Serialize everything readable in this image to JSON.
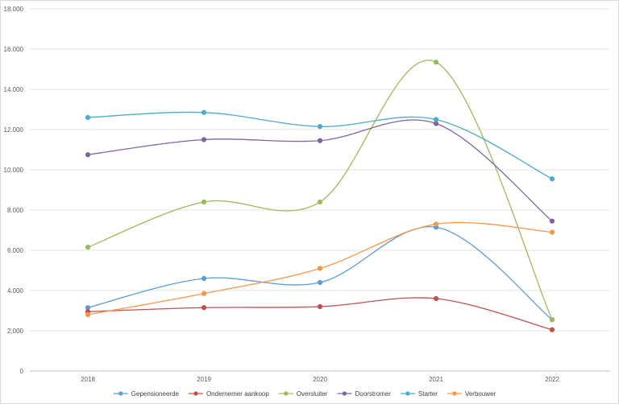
{
  "chart_data": {
    "type": "line",
    "title": "",
    "xlabel": "",
    "ylabel": "",
    "categories": [
      "2018",
      "2019",
      "2020",
      "2021",
      "2022"
    ],
    "ylim": [
      0,
      18000
    ],
    "yticks": [
      0,
      2000,
      4000,
      6000,
      8000,
      10000,
      12000,
      14000,
      16000,
      18000
    ],
    "ytick_labels": [
      "0",
      "2.000",
      "4.000",
      "6.000",
      "8.000",
      "10.000",
      "12.000",
      "14.000",
      "16.000",
      "18.000"
    ],
    "grid": "horizontal",
    "smooth": true,
    "legend_position": "bottom",
    "series": [
      {
        "name": "Gepensioneerde",
        "color": "#5b9bd5",
        "values": [
          3150,
          4600,
          4400,
          7150,
          2550
        ]
      },
      {
        "name": "Ondernemer aankoop",
        "color": "#c0504d",
        "values": [
          2950,
          3150,
          3200,
          3600,
          2050
        ]
      },
      {
        "name": "Oversluiter",
        "color": "#9bbb59",
        "values": [
          6150,
          8400,
          8400,
          15350,
          2550
        ]
      },
      {
        "name": "Doorstromer",
        "color": "#8064a2",
        "values": [
          10750,
          11500,
          11450,
          12300,
          7450
        ]
      },
      {
        "name": "Starter",
        "color": "#4bacc6",
        "values": [
          12600,
          12850,
          12150,
          12500,
          9550
        ]
      },
      {
        "name": "Verbouwer",
        "color": "#f79646",
        "values": [
          2800,
          3850,
          5100,
          7300,
          6900
        ]
      }
    ]
  }
}
